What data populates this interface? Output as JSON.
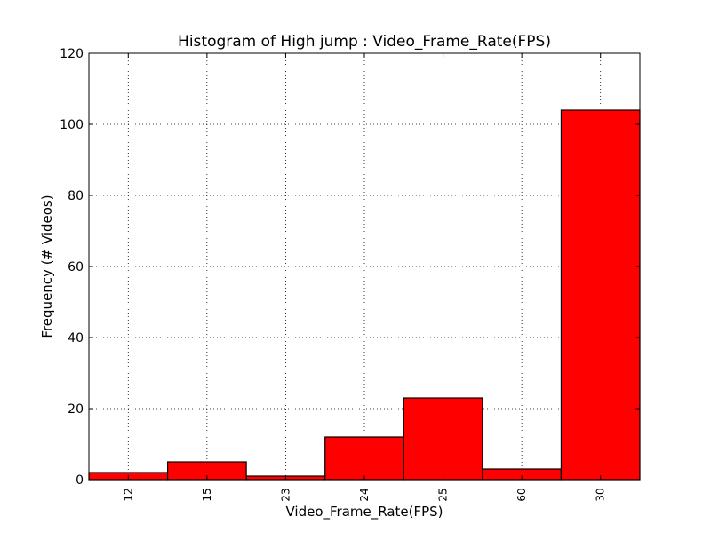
{
  "chart_data": {
    "type": "bar",
    "title": "Histogram of High jump : Video_Frame_Rate(FPS)",
    "xlabel": "Video_Frame_Rate(FPS)",
    "ylabel": "Frequency (# Videos)",
    "categories": [
      "12",
      "15",
      "23",
      "24",
      "25",
      "60",
      "30"
    ],
    "values": [
      2,
      5,
      1,
      12,
      23,
      3,
      104
    ],
    "ylim": [
      0,
      120
    ],
    "yticks": [
      0,
      20,
      40,
      60,
      80,
      100,
      120
    ],
    "grid": true,
    "bar_color": "#ff0000",
    "edge_color": "#000000"
  }
}
